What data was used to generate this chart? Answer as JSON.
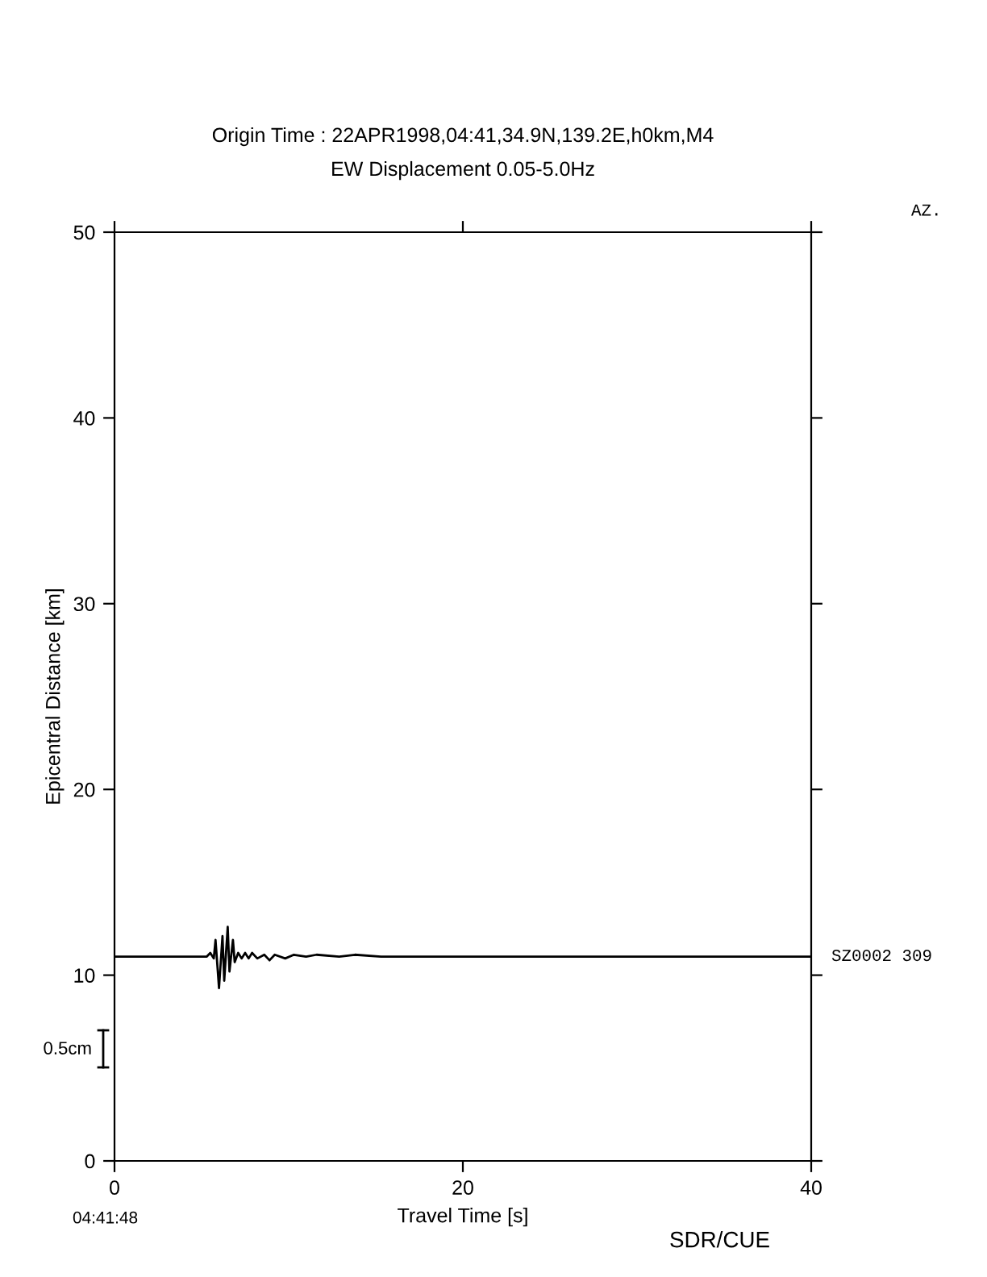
{
  "chart_data": {
    "type": "line",
    "title": "Origin Time : 22APR1998,04:41,34.9N,139.2E,h0km,M4",
    "subtitle": "EW Displacement 0.05-5.0Hz",
    "xlabel": "Travel Time [s]",
    "ylabel": "Epicentral Distance [km]",
    "xlim": [
      0,
      40
    ],
    "xticks": [
      0,
      20,
      40
    ],
    "ylim": [
      0,
      50
    ],
    "yticks": [
      0,
      10,
      20,
      30,
      40,
      50
    ],
    "grid": false,
    "legend": false,
    "series": [
      {
        "name": "SZ0002 309",
        "color": "#000000",
        "x": [
          0,
          5.3,
          5.5,
          5.7,
          5.8,
          6.0,
          6.2,
          6.3,
          6.5,
          6.6,
          6.8,
          6.9,
          7.1,
          7.3,
          7.5,
          7.7,
          7.9,
          8.2,
          8.6,
          8.9,
          9.2,
          9.8,
          10.3,
          11.0,
          11.6,
          12.9,
          13.8,
          15.3,
          18.4,
          40
        ],
        "values": [
          11.0,
          11.0,
          11.2,
          10.9,
          11.9,
          9.3,
          12.1,
          9.7,
          12.6,
          10.2,
          11.9,
          10.7,
          11.2,
          10.9,
          11.2,
          10.9,
          11.2,
          10.9,
          11.1,
          10.8,
          11.1,
          10.9,
          11.1,
          11.0,
          11.1,
          11.0,
          11.1,
          11.0,
          11.0,
          11.0
        ]
      }
    ],
    "annotations": [
      "AZ.",
      "0.5cm",
      "04:41:48",
      "SDR/CUE"
    ]
  }
}
